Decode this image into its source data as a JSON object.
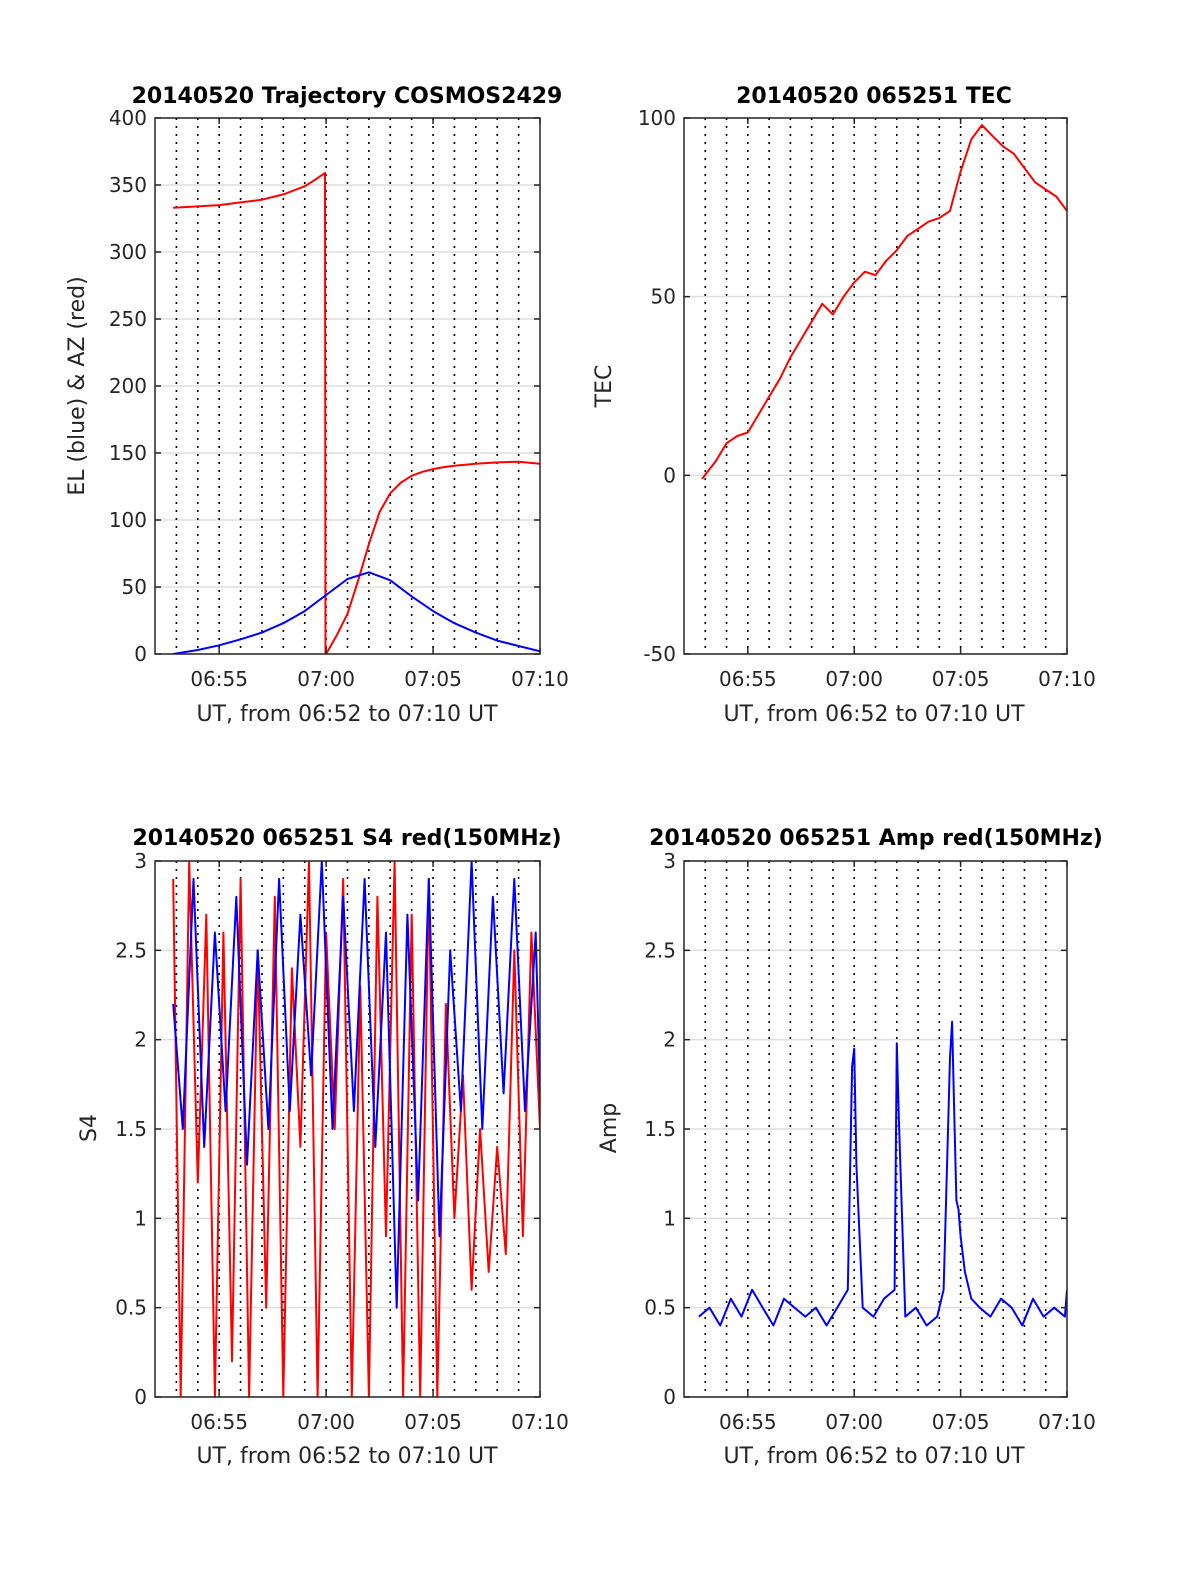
{
  "figure": {
    "background": "#ffffff"
  },
  "chart_data": [
    {
      "id": "trajectory",
      "type": "line",
      "title": "20140520 Trajectory COSMOS2429",
      "xlabel": "UT, from 06:52 to 07:10 UT",
      "ylabel": "EL (blue) & AZ (red)",
      "xlim_minutes_after_0652": [
        0,
        18
      ],
      "xticks": [
        {
          "label": "06:55",
          "minute": 3
        },
        {
          "label": "07:00",
          "minute": 8
        },
        {
          "label": "07:05",
          "minute": 13
        },
        {
          "label": "07:10",
          "minute": 18
        }
      ],
      "ylim": [
        0,
        400
      ],
      "yticks": [
        0,
        50,
        100,
        150,
        200,
        250,
        300,
        350,
        400
      ],
      "grid": true,
      "series": [
        {
          "color": "#ff0000",
          "x": [
            0.85,
            2,
            3,
            4,
            5,
            6,
            7,
            7.5,
            7.95,
            7.97,
            8,
            8.5,
            9,
            9.5,
            10,
            10.5,
            11,
            11.5,
            12,
            12.5,
            13,
            13.5,
            14,
            15,
            16,
            17,
            18
          ],
          "y": [
            333,
            334,
            335,
            337,
            339,
            343,
            349,
            354,
            359,
            0,
            0,
            14,
            30,
            55,
            82,
            106,
            120,
            128,
            133,
            136,
            138,
            139.5,
            140.5,
            142,
            143,
            143.5,
            142
          ]
        },
        {
          "color": "#0000ff",
          "x": [
            0.85,
            2,
            3,
            4,
            5,
            6,
            7,
            8,
            9,
            10,
            11,
            12,
            13,
            14,
            15,
            16,
            17,
            18
          ],
          "y": [
            0,
            3,
            6.5,
            11,
            16,
            23,
            32,
            44,
            56,
            61,
            55,
            43,
            32,
            23,
            16,
            10,
            6,
            2
          ]
        }
      ]
    },
    {
      "id": "tec",
      "type": "line",
      "title": "20140520 065251 TEC",
      "xlabel": "UT, from 06:52 to 07:10 UT",
      "ylabel": "TEC",
      "xlim_minutes_after_0652": [
        0,
        18
      ],
      "xticks": [
        {
          "label": "06:55",
          "minute": 3
        },
        {
          "label": "07:00",
          "minute": 8
        },
        {
          "label": "07:05",
          "minute": 13
        },
        {
          "label": "07:10",
          "minute": 18
        }
      ],
      "ylim": [
        -50,
        100
      ],
      "yticks": [
        -50,
        0,
        50,
        100
      ],
      "grid": true,
      "series": [
        {
          "color": "#ff0000",
          "x": [
            0.85,
            1.5,
            2,
            2.5,
            3,
            3.5,
            4,
            4.5,
            5,
            5.5,
            6,
            6.5,
            7,
            7.5,
            8,
            8.5,
            9,
            9.5,
            10,
            10.5,
            11,
            11.5,
            12,
            12.5,
            13,
            13.5,
            14,
            14.5,
            15,
            15.5,
            16,
            16.5,
            17,
            17.5,
            18
          ],
          "y": [
            -1,
            4,
            9,
            11,
            12,
            17,
            22,
            27,
            33,
            38,
            43,
            48,
            45,
            50,
            54,
            57,
            56,
            60,
            63,
            67,
            69,
            71,
            72,
            74,
            85,
            94,
            98,
            95,
            92,
            90,
            86,
            82,
            80,
            78,
            74
          ]
        }
      ]
    },
    {
      "id": "s4",
      "type": "line",
      "title": "20140520 065251 S4 red(150MHz)",
      "xlabel": "UT, from 06:52 to 07:10 UT",
      "ylabel": "S4",
      "xlim_minutes_after_0652": [
        0,
        18
      ],
      "xticks": [
        {
          "label": "06:55",
          "minute": 3
        },
        {
          "label": "07:00",
          "minute": 8
        },
        {
          "label": "07:05",
          "minute": 13
        },
        {
          "label": "07:10",
          "minute": 18
        }
      ],
      "ylim": [
        0,
        3
      ],
      "yticks": [
        0,
        0.5,
        1,
        1.5,
        2,
        2.5,
        3
      ],
      "grid": true,
      "series": [
        {
          "color": "#ff0000",
          "x": [
            0.85,
            1.2,
            1.6,
            2,
            2.4,
            2.8,
            3.2,
            3.6,
            4,
            4.4,
            4.8,
            5.2,
            5.6,
            6,
            6.4,
            6.8,
            7.2,
            7.6,
            8,
            8.4,
            8.8,
            9.2,
            9.6,
            10,
            10.4,
            10.8,
            11.2,
            11.6,
            12,
            12.4,
            12.8,
            13.2,
            13.6,
            14,
            14.4,
            14.8,
            15.2,
            15.6,
            16,
            16.4,
            16.8,
            17.2,
            17.6,
            18
          ],
          "y": [
            2.9,
            0,
            3,
            1.2,
            2.7,
            0,
            2.6,
            0.2,
            2.9,
            0,
            2.5,
            0.5,
            2.8,
            0,
            2.4,
            1.4,
            3,
            0,
            2.6,
            1.5,
            2.9,
            0,
            2.3,
            0,
            2.8,
            0.9,
            3,
            0,
            2.7,
            0,
            2.9,
            0,
            2.2,
            1.0,
            1.8,
            0.6,
            1.5,
            0.7,
            1.4,
            0.8,
            2.5,
            0.9,
            2.6,
            1.5
          ]
        },
        {
          "color": "#0000ff",
          "x": [
            0.85,
            1.3,
            1.8,
            2.3,
            2.8,
            3.3,
            3.8,
            4.3,
            4.8,
            5.3,
            5.8,
            6.3,
            6.8,
            7.3,
            7.8,
            8.3,
            8.8,
            9.3,
            9.8,
            10.3,
            10.8,
            11.3,
            11.8,
            12.3,
            12.8,
            13.3,
            13.8,
            14.3,
            14.8,
            15.3,
            15.8,
            16.3,
            16.8,
            17.3,
            17.8,
            18
          ],
          "y": [
            2.2,
            1.5,
            2.9,
            1.4,
            2.6,
            1.6,
            2.8,
            1.3,
            2.5,
            1.5,
            2.9,
            1.6,
            2.7,
            1.8,
            3,
            1.5,
            2.8,
            1.6,
            2.9,
            1.4,
            2.6,
            0.5,
            2.7,
            1.1,
            2.9,
            0.9,
            2.5,
            1.6,
            3,
            1.5,
            2.8,
            1.7,
            2.9,
            1.6,
            2.6,
            1.7
          ]
        }
      ]
    },
    {
      "id": "amp",
      "type": "line",
      "title": "20140520 065251 Amp red(150MHz)",
      "xlabel": "UT, from 06:52 to 07:10 UT",
      "ylabel": "Amp",
      "xlim_minutes_after_0652": [
        0,
        18
      ],
      "xticks": [
        {
          "label": "06:55",
          "minute": 3
        },
        {
          "label": "07:00",
          "minute": 8
        },
        {
          "label": "07:05",
          "minute": 13
        },
        {
          "label": "07:10",
          "minute": 18
        }
      ],
      "ylim": [
        0,
        3
      ],
      "yticks": [
        0,
        0.5,
        1,
        1.5,
        2,
        2.5,
        3
      ],
      "grid": true,
      "series": [
        {
          "color": "#0000ff",
          "x": [
            0.7,
            1.2,
            1.7,
            2.2,
            2.7,
            3.2,
            3.7,
            4.2,
            4.7,
            5.2,
            5.7,
            6.2,
            6.7,
            7.2,
            7.7,
            7.9,
            8.0,
            8.1,
            8.4,
            8.9,
            9.4,
            9.9,
            10,
            10.1,
            10.4,
            10.9,
            11.4,
            11.9,
            12.2,
            12.4,
            12.5,
            12.6,
            12.7,
            12.8,
            12.9,
            13.0,
            13.2,
            13.5,
            13.9,
            14.4,
            14.9,
            15.4,
            15.9,
            16.4,
            16.9,
            17.4,
            17.9,
            18
          ],
          "y": [
            0.45,
            0.5,
            0.4,
            0.55,
            0.45,
            0.6,
            0.5,
            0.4,
            0.55,
            0.5,
            0.45,
            0.5,
            0.4,
            0.5,
            0.6,
            1.85,
            1.95,
            1.3,
            0.5,
            0.45,
            0.55,
            0.6,
            1.98,
            1.55,
            0.45,
            0.5,
            0.4,
            0.45,
            0.6,
            1.45,
            1.9,
            2.1,
            1.6,
            1.1,
            1.05,
            0.9,
            0.7,
            0.55,
            0.5,
            0.45,
            0.55,
            0.5,
            0.4,
            0.55,
            0.45,
            0.5,
            0.45,
            0.6
          ]
        }
      ]
    }
  ]
}
